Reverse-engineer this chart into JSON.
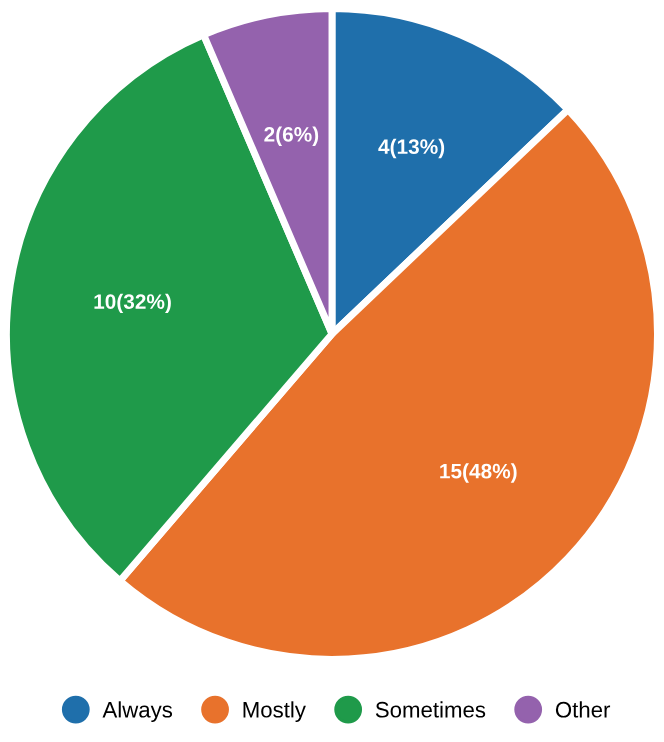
{
  "chart_data": {
    "type": "pie",
    "categories": [
      "Always",
      "Mostly",
      "Sometimes",
      "Other"
    ],
    "values": [
      4,
      15,
      10,
      2
    ],
    "value_labels": [
      "4(13%)",
      "15(48%)",
      "10(32%)",
      "2(6%)"
    ],
    "colors": [
      "#1f6fab",
      "#e8722c",
      "#1f9a4a",
      "#9462ad"
    ],
    "legend": "bottom"
  }
}
